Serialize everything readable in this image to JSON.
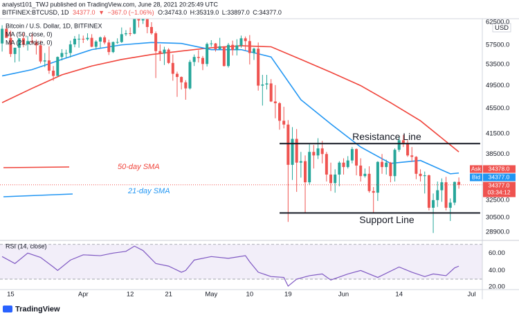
{
  "header": {
    "publisher": "analyst101_TWJ published on TradingView.com, June 28, 2021 20:25:49 UTC",
    "symbol": "BITFINEX:BTCUSD, 1D",
    "last": "34377.0",
    "arrow": "▼",
    "change": "−367.0 (−1.06%)",
    "ohlc": [
      "O:34743.0",
      "H:35319.0",
      "L:33897.0",
      "C:34377.0"
    ]
  },
  "footer": {
    "brand": "TradingView"
  },
  "chart_data": [
    {
      "type": "candlestick",
      "title": "Bitcoin / U.S. Dollar, 1D, BITFINEX",
      "currency": "USD",
      "up_color": "#26a69a",
      "down_color": "#ef5350",
      "x": [
        12,
        13,
        14,
        15,
        16,
        17,
        18,
        19,
        20,
        21,
        22,
        23,
        24,
        25,
        26,
        27,
        28,
        29,
        30,
        31,
        32,
        33,
        34,
        35,
        36,
        37,
        38,
        39,
        40,
        41,
        42,
        43,
        44,
        45,
        46,
        47,
        48,
        49,
        50,
        51,
        52,
        53,
        54,
        55,
        56,
        57,
        58,
        59,
        60,
        61,
        62,
        63,
        64,
        65,
        66,
        67,
        68,
        69,
        70,
        71,
        72,
        73,
        74,
        75,
        76,
        77,
        78,
        79,
        80,
        81,
        82,
        83,
        84,
        85,
        86,
        87,
        88,
        89,
        90,
        91,
        92,
        93,
        94,
        95,
        96,
        97,
        98,
        99,
        100,
        101,
        102,
        103,
        104,
        105,
        106,
        107,
        108,
        109,
        110,
        111,
        112,
        113,
        114,
        115,
        116,
        117,
        118,
        119
      ],
      "open": [
        57800,
        61000,
        59000,
        55600,
        56900,
        58900,
        57600,
        58300,
        58000,
        57400,
        54100,
        54300,
        52300,
        51300,
        55000,
        55800,
        55800,
        57600,
        58800,
        58800,
        58700,
        59000,
        57100,
        58200,
        59100,
        58000,
        56000,
        58100,
        58100,
        59800,
        60000,
        59900,
        63600,
        62900,
        63200,
        61400,
        60000,
        56200,
        55700,
        56500,
        53800,
        51700,
        51100,
        50100,
        49000,
        54000,
        55000,
        54800,
        53600,
        57700,
        57800,
        56600,
        57200,
        53200,
        57500,
        56400,
        57400,
        58900,
        58300,
        55800,
        56700,
        49500,
        49700,
        49900,
        46700,
        46400,
        43500,
        42900,
        37000,
        40700,
        37300,
        37500,
        34700,
        38800,
        38300,
        39300,
        38500,
        35700,
        34600,
        35700,
        37300,
        36700,
        37600,
        39200,
        36900,
        35500,
        35800,
        33600,
        33400,
        37400,
        36700,
        37300,
        35500,
        39100,
        40500,
        40100,
        38300,
        38100,
        35800,
        35500,
        35600,
        31600,
        32500,
        33700,
        34700,
        31600,
        32200,
        34743
      ],
      "high": [
        61800,
        61700,
        60600,
        56900,
        58900,
        60100,
        59400,
        59900,
        58600,
        58400,
        55800,
        57200,
        53200,
        55100,
        56600,
        56500,
        58400,
        59400,
        59800,
        59500,
        60000,
        59800,
        58500,
        59300,
        59500,
        58600,
        58200,
        58900,
        61300,
        60700,
        61300,
        63800,
        64900,
        63800,
        63600,
        62500,
        60400,
        57600,
        57100,
        56800,
        55500,
        52100,
        51200,
        50500,
        54400,
        55500,
        56400,
        55200,
        58000,
        58500,
        57900,
        59000,
        57200,
        57900,
        58400,
        58700,
        59500,
        59300,
        59600,
        56900,
        58000,
        51500,
        51500,
        50700,
        49600,
        46600,
        45800,
        43600,
        42500,
        42200,
        38800,
        38300,
        39900,
        39800,
        40800,
        40400,
        38800,
        37300,
        36400,
        37500,
        37900,
        38200,
        39500,
        39300,
        37900,
        36500,
        36800,
        34100,
        37500,
        38500,
        37700,
        37400,
        39300,
        41000,
        41300,
        40500,
        39500,
        38200,
        36400,
        36100,
        35700,
        33300,
        34800,
        35200,
        35400,
        32700,
        34800,
        35319
      ],
      "low": [
        56100,
        59000,
        55000,
        53900,
        54100,
        57000,
        56300,
        57800,
        55500,
        53700,
        53000,
        51700,
        50400,
        51300,
        54300,
        54700,
        54900,
        57000,
        56900,
        57900,
        58400,
        57000,
        56500,
        56800,
        57600,
        55400,
        55800,
        57700,
        57900,
        59400,
        59400,
        59800,
        61300,
        62100,
        60000,
        59700,
        50900,
        54200,
        53400,
        53600,
        50400,
        47500,
        48800,
        47000,
        48800,
        53200,
        53900,
        52400,
        53100,
        57100,
        56100,
        56500,
        53100,
        52900,
        55300,
        55300,
        56900,
        56300,
        53500,
        54400,
        48600,
        46000,
        48800,
        46600,
        43900,
        42100,
        42300,
        30000,
        35000,
        33500,
        35300,
        31000,
        34400,
        36500,
        37800,
        37200,
        34800,
        33600,
        33400,
        34200,
        35700,
        36500,
        37200,
        35600,
        34800,
        35300,
        33400,
        31000,
        32400,
        35800,
        35700,
        34700,
        34800,
        38800,
        39500,
        38100,
        37400,
        35100,
        34800,
        33300,
        31300,
        28800,
        31700,
        32300,
        31300,
        30100,
        31900,
        33897
      ],
      "close": [
        61000,
        59000,
        55600,
        56900,
        58900,
        57600,
        58300,
        58000,
        57400,
        54100,
        54300,
        52300,
        51300,
        55000,
        55800,
        55800,
        57600,
        58800,
        58800,
        58700,
        59000,
        57100,
        58200,
        59100,
        58000,
        56000,
        58100,
        58100,
        59800,
        60000,
        59900,
        63600,
        62900,
        63200,
        61400,
        60000,
        56200,
        55700,
        56500,
        53800,
        51700,
        51100,
        50100,
        49000,
        54000,
        55000,
        54800,
        53600,
        57700,
        57800,
        56600,
        57200,
        53200,
        57500,
        56400,
        57400,
        58900,
        58300,
        55800,
        56700,
        49500,
        49700,
        49900,
        46700,
        46400,
        43500,
        42900,
        37000,
        40700,
        37300,
        37500,
        34700,
        38800,
        38300,
        39300,
        38500,
        35700,
        34600,
        35700,
        37300,
        36700,
        37600,
        39200,
        36900,
        35500,
        35800,
        33600,
        33400,
        37400,
        36700,
        37300,
        35500,
        39100,
        40500,
        40100,
        38300,
        38100,
        35800,
        35500,
        35600,
        31600,
        32500,
        33700,
        34700,
        31600,
        32200,
        34743,
        34377
      ],
      "series": [
        {
          "name": "MA (50, close, 0)",
          "color": "#f0433a",
          "x": [
            12,
            19,
            26,
            33,
            40,
            47,
            54,
            61,
            68,
            75,
            82,
            89,
            96,
            103,
            110,
            117,
            119
          ],
          "values": [
            46500,
            49000,
            51500,
            53200,
            54500,
            55500,
            56200,
            56900,
            57300,
            57100,
            54500,
            52000,
            49500,
            46500,
            43500,
            39800,
            38800
          ]
        },
        {
          "name": "MA (21, close, 0)",
          "color": "#2196f3",
          "x": [
            12,
            19,
            26,
            33,
            40,
            47,
            54,
            61,
            68,
            75,
            82,
            89,
            96,
            103,
            110,
            117,
            119
          ],
          "values": [
            51300,
            52500,
            54500,
            56500,
            57500,
            58000,
            57800,
            56500,
            56500,
            55000,
            47000,
            43000,
            39500,
            37200,
            37600,
            35800,
            35900
          ]
        }
      ],
      "annotations": [
        {
          "text": "Resistance Line",
          "value": 40000,
          "x": [
            77,
            124
          ],
          "color": "#131722"
        },
        {
          "text": "Support Line",
          "value": 31000,
          "x": [
            77,
            124
          ],
          "color": "#131722"
        },
        {
          "text": "50-day SMA",
          "color": "#f0433a"
        },
        {
          "text": "21-day SMA",
          "color": "#2196f3"
        }
      ],
      "price_labels": [
        {
          "name": "Ask",
          "label": "34378.0",
          "color": "#ef5350"
        },
        {
          "name": "Bid",
          "label": "34377.0",
          "color": "#2196f3"
        },
        {
          "label": "34377.0",
          "color": "#ef5350"
        }
      ],
      "countdown": "03:34:12",
      "xlim": [
        11.5,
        124.5
      ],
      "xticks": [
        {
          "value": 14,
          "label": "15"
        },
        {
          "value": 31,
          "label": "Apr"
        },
        {
          "value": 42,
          "label": "12"
        },
        {
          "value": 51,
          "label": "21"
        },
        {
          "value": 61,
          "label": "May"
        },
        {
          "value": 70,
          "label": "10"
        },
        {
          "value": 79,
          "label": "19"
        },
        {
          "value": 92,
          "label": "Jun"
        },
        {
          "value": 105,
          "label": "14"
        },
        {
          "value": 122,
          "label": "Jul"
        }
      ],
      "ylim": [
        28170,
        63300
      ],
      "log_scale": true,
      "grid": true,
      "yticks": [
        {
          "value": 62500,
          "label": "62500.0"
        },
        {
          "value": 57500,
          "label": "57500.0"
        },
        {
          "value": 53500,
          "label": "53500.0"
        },
        {
          "value": 49500,
          "label": "49500.0"
        },
        {
          "value": 45500,
          "label": "45500.0"
        },
        {
          "value": 41500,
          "label": "41500.0"
        },
        {
          "value": 38500,
          "label": "38500.0"
        },
        {
          "value": 32500,
          "label": "32500.0"
        },
        {
          "value": 30500,
          "label": "30500.0"
        },
        {
          "value": 28900,
          "label": "28900.0"
        }
      ]
    },
    {
      "type": "line",
      "title": "RSI (14, close)",
      "color": "#7e57c2",
      "band": [
        30,
        70
      ],
      "band_color": "#7e57c2",
      "x": [
        12,
        15,
        18,
        21,
        24,
        25,
        28,
        31,
        35,
        38,
        41,
        43,
        45,
        48,
        51,
        54,
        55,
        57,
        61,
        65,
        69,
        70,
        72,
        75,
        78,
        79,
        81,
        84,
        87,
        89,
        93,
        96,
        100,
        105,
        108,
        111,
        113,
        116,
        118,
        119
      ],
      "values": [
        56,
        48,
        60,
        55,
        44,
        40,
        52,
        58,
        57,
        60,
        62,
        68,
        63,
        48,
        45,
        38,
        40,
        52,
        56,
        54,
        57,
        50,
        38,
        33,
        32,
        22,
        30,
        34,
        36,
        29,
        36,
        40,
        32,
        44,
        38,
        33,
        36,
        34,
        43,
        45
      ],
      "xlim": [
        11.5,
        124.5
      ],
      "ylim": [
        18,
        73
      ],
      "grid": true,
      "yticks": [
        {
          "value": 60,
          "label": "60.00"
        },
        {
          "value": 40,
          "label": "40.00"
        },
        {
          "value": 20,
          "label": "20.00"
        }
      ]
    }
  ]
}
